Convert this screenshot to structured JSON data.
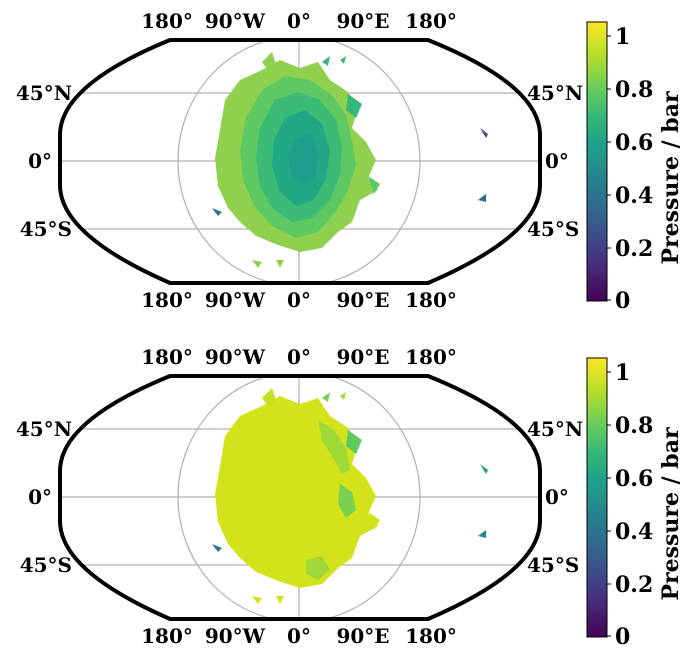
{
  "maps": [
    {
      "lon_ticks_top": [
        "180°",
        "90°W",
        "0°",
        "90°E",
        "180°"
      ],
      "lon_ticks_bottom": [
        "180°",
        "90°W",
        "0°",
        "90°E",
        "180°"
      ],
      "lat_ticks_left": [
        "45°N",
        "0°",
        "45°S"
      ],
      "lat_ticks_right": [
        "45°N",
        "0°",
        "45°S"
      ],
      "colorbar": {
        "label": "Pressure / bar",
        "ticks": [
          "0",
          "0.2",
          "0.4",
          "0.6",
          "0.8",
          "1"
        ]
      },
      "colors": {
        "outer": "#8fd14f",
        "mid": "#3bbb75",
        "core": "#22a884",
        "deep": "#2a788e"
      }
    },
    {
      "lon_ticks_top": [
        "180°",
        "90°W",
        "0°",
        "90°E",
        "180°"
      ],
      "lon_ticks_bottom": [
        "180°",
        "90°W",
        "0°",
        "90°E",
        "180°"
      ],
      "lat_ticks_left": [
        "45°N",
        "0°",
        "45°S"
      ],
      "lat_ticks_right": [
        "45°N",
        "0°",
        "45°S"
      ],
      "colorbar": {
        "label": "Pressure / bar",
        "ticks": [
          "0",
          "0.2",
          "0.4",
          "0.6",
          "0.8",
          "1"
        ]
      },
      "colors": {
        "outer": "#d2e21b",
        "mid": "#bddf26",
        "core": "#7ad151",
        "deep": "#35b779"
      }
    }
  ],
  "colorbar_gradient": [
    "#440154",
    "#482878",
    "#3e4989",
    "#31688e",
    "#26828e",
    "#1f9e89",
    "#35b779",
    "#6ece58",
    "#b5de2b",
    "#fde725"
  ]
}
